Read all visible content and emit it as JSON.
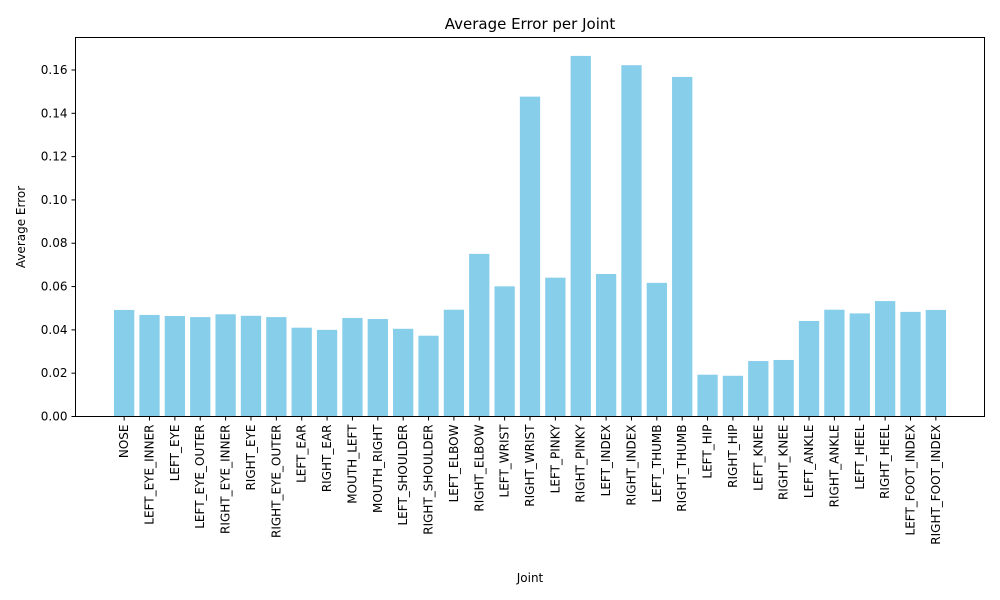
{
  "chart_data": {
    "type": "bar",
    "title": "Average Error per Joint",
    "xlabel": "Joint",
    "ylabel": "Average Error",
    "ylim": [
      0,
      0.175
    ],
    "yticks": [
      0.0,
      0.02,
      0.04,
      0.06,
      0.08,
      0.1,
      0.12,
      0.14,
      0.16
    ],
    "ytick_labels": [
      "0.00",
      "0.02",
      "0.04",
      "0.06",
      "0.08",
      "0.10",
      "0.12",
      "0.14",
      "0.16"
    ],
    "bar_color": "#87ceeb",
    "grid": false,
    "categories": [
      "NOSE",
      "LEFT_EYE_INNER",
      "LEFT_EYE",
      "LEFT_EYE_OUTER",
      "RIGHT_EYE_INNER",
      "RIGHT_EYE",
      "RIGHT_EYE_OUTER",
      "LEFT_EAR",
      "RIGHT_EAR",
      "MOUTH_LEFT",
      "MOUTH_RIGHT",
      "LEFT_SHOULDER",
      "RIGHT_SHOULDER",
      "LEFT_ELBOW",
      "RIGHT_ELBOW",
      "LEFT_WRIST",
      "RIGHT_WRIST",
      "LEFT_PINKY",
      "RIGHT_PINKY",
      "LEFT_INDEX",
      "RIGHT_INDEX",
      "LEFT_THUMB",
      "RIGHT_THUMB",
      "LEFT_HIP",
      "RIGHT_HIP",
      "LEFT_KNEE",
      "RIGHT_KNEE",
      "LEFT_ANKLE",
      "RIGHT_ANKLE",
      "LEFT_HEEL",
      "RIGHT_HEEL",
      "LEFT_FOOT_INDEX",
      "RIGHT_FOOT_INDEX"
    ],
    "values": [
      0.0492,
      0.0469,
      0.0464,
      0.0459,
      0.0472,
      0.0465,
      0.0459,
      0.041,
      0.04,
      0.0455,
      0.045,
      0.0405,
      0.0373,
      0.0493,
      0.0751,
      0.0601,
      0.1477,
      0.0641,
      0.1665,
      0.0658,
      0.1622,
      0.0617,
      0.1568,
      0.0193,
      0.0188,
      0.0256,
      0.0261,
      0.0441,
      0.0493,
      0.0476,
      0.0533,
      0.0483,
      0.0492
    ]
  }
}
